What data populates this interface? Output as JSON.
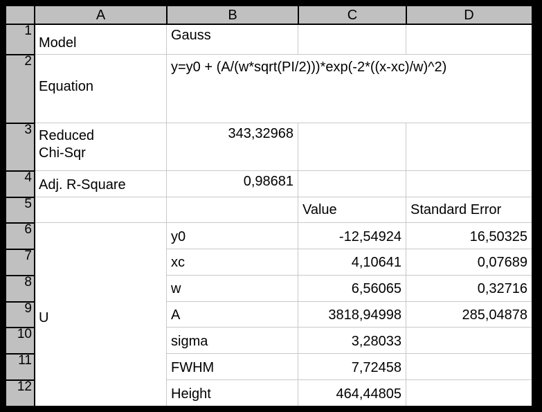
{
  "columns": [
    "A",
    "B",
    "C",
    "D"
  ],
  "rows": [
    "1",
    "2",
    "3",
    "4",
    "5",
    "6",
    "7",
    "8",
    "9",
    "10",
    "11",
    "12"
  ],
  "cells": {
    "A1": "Model",
    "B1": "Gauss",
    "A2": "Equation",
    "B2": "y=y0 + (A/(w*sqrt(PI/2)))*exp(-2*((x-xc)/w)^2)",
    "A3_line1": "Reduced",
    "A3_line2": "Chi-Sqr",
    "B3": "343,32968",
    "A4": "Adj. R-Square",
    "B4": "0,98681",
    "C5": "Value",
    "D5": "Standard Error",
    "A6_12": "U",
    "params": [
      {
        "name": "y0",
        "value": "-12,54924",
        "error": "16,50325"
      },
      {
        "name": "xc",
        "value": "4,10641",
        "error": "0,07689"
      },
      {
        "name": "w",
        "value": "6,56065",
        "error": "0,32716"
      },
      {
        "name": "A",
        "value": "3818,94998",
        "error": "285,04878"
      },
      {
        "name": "sigma",
        "value": "3,28033",
        "error": ""
      },
      {
        "name": "FWHM",
        "value": "7,72458",
        "error": ""
      },
      {
        "name": "Height",
        "value": "464,44805",
        "error": ""
      }
    ]
  }
}
